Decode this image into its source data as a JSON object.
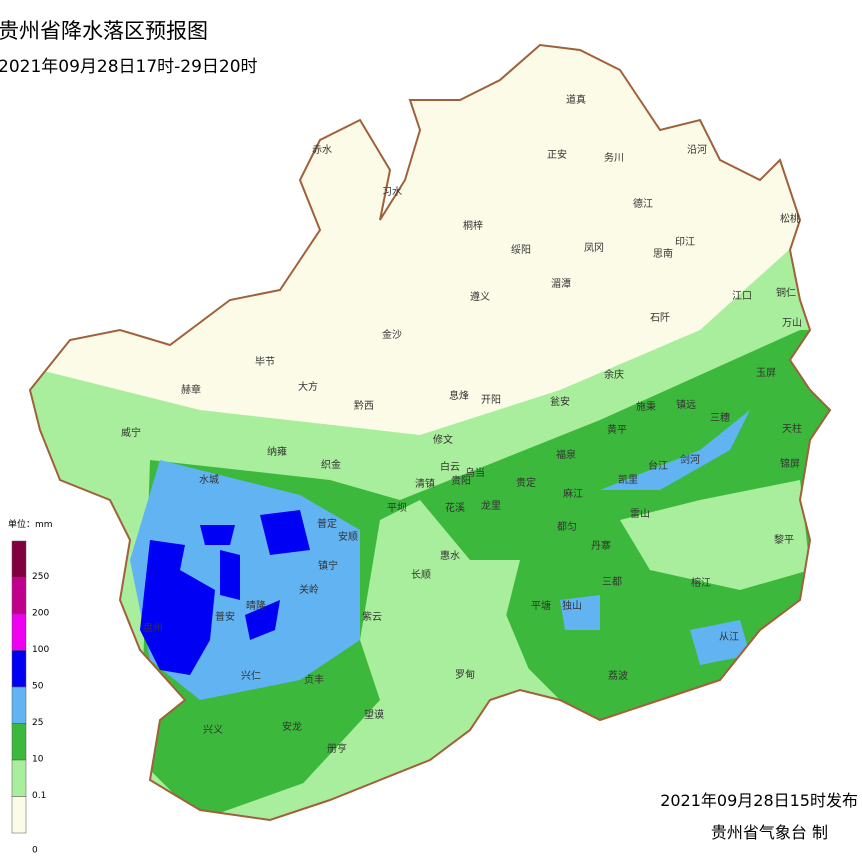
{
  "header": {
    "title": "贵州省降水落区预报图",
    "subtitle": "2021年09月28日17时-29日20时"
  },
  "legend": {
    "unit": "单位：mm",
    "labels": [
      "250",
      "200",
      "100",
      "50",
      "25",
      "10",
      "0.1",
      "0"
    ]
  },
  "places": [
    "道真",
    "赤水",
    "习水",
    "正安",
    "务川",
    "沿河",
    "德江",
    "桐梓",
    "绥阳",
    "凤冈",
    "印江",
    "思南",
    "松桃",
    "湄潭",
    "遵义",
    "江口",
    "铜仁",
    "石阡",
    "万山",
    "金沙",
    "毕节",
    "大方",
    "余庆",
    "玉屏",
    "赫章",
    "黔西",
    "息烽",
    "开阳",
    "瓮安",
    "施秉",
    "镇远",
    "三穗",
    "天柱",
    "威宁",
    "修文",
    "黄平",
    "纳雍",
    "织金",
    "白云",
    "乌当",
    "福泉",
    "台江",
    "剑河",
    "锦屏",
    "水城",
    "清镇",
    "贵阳",
    "贵定",
    "麻江",
    "凯里",
    "平坝",
    "花溪",
    "龙里",
    "都匀",
    "雷山",
    "黎平",
    "普定",
    "安顺",
    "丹寨",
    "镇宁",
    "长顺",
    "惠水",
    "三都",
    "榕江",
    "关岭",
    "平塘",
    "独山",
    "晴隆",
    "普安",
    "紫云",
    "从江",
    "盘州",
    "兴仁",
    "罗甸",
    "荔波",
    "贞丰",
    "望谟",
    "兴义",
    "安龙",
    "册亨"
  ],
  "footer": {
    "issued": "2021年09月28日15时发布",
    "issuer": "贵州省气象台 制"
  }
}
